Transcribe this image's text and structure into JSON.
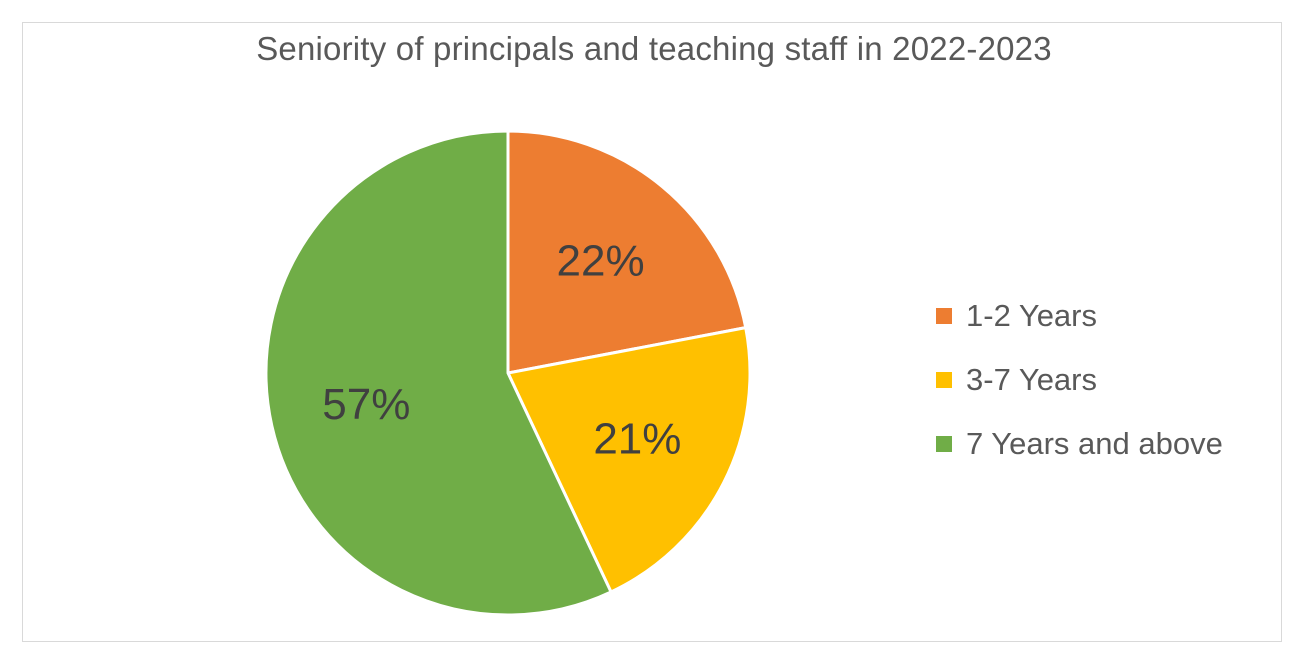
{
  "chart_data": {
    "type": "pie",
    "title": "Seniority of principals and teaching staff in 2022-2023",
    "categories": [
      "1-2 Years",
      "3-7 Years",
      "7 Years and above"
    ],
    "values": [
      22,
      21,
      57
    ],
    "data_labels": [
      "22%",
      "21%",
      "57%"
    ],
    "colors": [
      "#ed7d31",
      "#ffc000",
      "#70ad47"
    ],
    "legend_position": "right",
    "start_angle": "12 o'clock",
    "direction": "clockwise"
  }
}
